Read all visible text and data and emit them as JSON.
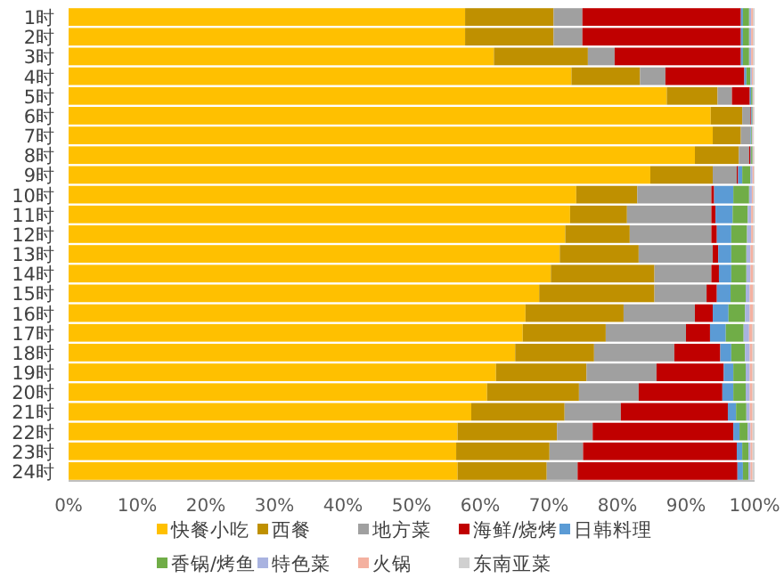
{
  "chart_data": {
    "type": "bar",
    "orientation": "horizontal",
    "stacked": true,
    "legend": "bottom",
    "grid": false,
    "categories": [
      "1时",
      "2时",
      "3时",
      "4时",
      "5时",
      "6时",
      "7时",
      "8时",
      "9时",
      "10时",
      "11时",
      "12时",
      "13时",
      "14时",
      "15时",
      "16时",
      "17时",
      "18时",
      "19时",
      "20时",
      "21时",
      "22时",
      "23时",
      "24时"
    ],
    "xlim": [
      0,
      100
    ],
    "xticks": [
      {
        "value": 0,
        "label": "0%"
      },
      {
        "value": 10,
        "label": "10%"
      },
      {
        "value": 20,
        "label": "20%"
      },
      {
        "value": 30,
        "label": "30%"
      },
      {
        "value": 40,
        "label": "40%"
      },
      {
        "value": 50,
        "label": "50%"
      },
      {
        "value": 60,
        "label": "60%"
      },
      {
        "value": 70,
        "label": "70%"
      },
      {
        "value": 80,
        "label": "80%"
      },
      {
        "value": 90,
        "label": "90%"
      },
      {
        "value": 100,
        "label": "100%"
      }
    ],
    "series": [
      {
        "name": "快餐小吃",
        "color": "#ffc000",
        "values": [
          57.8,
          57.8,
          62.0,
          73.3,
          87.2,
          93.6,
          93.9,
          91.3,
          84.8,
          74.0,
          73.1,
          72.4,
          71.6,
          70.3,
          68.6,
          66.6,
          66.2,
          65.1,
          62.3,
          61.0,
          58.7,
          56.7,
          56.5,
          56.7
        ]
      },
      {
        "name": "西餐",
        "color": "#bf9000",
        "values": [
          12.9,
          12.9,
          13.7,
          10.0,
          7.4,
          4.6,
          4.1,
          6.4,
          9.1,
          8.9,
          8.3,
          9.4,
          11.5,
          15.1,
          16.8,
          14.3,
          12.1,
          11.5,
          13.2,
          13.4,
          13.6,
          14.5,
          13.6,
          13.0
        ]
      },
      {
        "name": "地方菜",
        "color": "#a0a0a0",
        "values": [
          4.2,
          4.2,
          3.9,
          3.7,
          2.1,
          1.2,
          1.4,
          1.5,
          3.5,
          10.8,
          12.3,
          11.9,
          10.8,
          8.3,
          7.6,
          10.4,
          11.7,
          11.7,
          10.2,
          8.7,
          8.2,
          5.2,
          4.9,
          4.5
        ]
      },
      {
        "name": "海鲜/烧烤",
        "color": "#c00000",
        "values": [
          23.1,
          23.1,
          18.4,
          11.5,
          2.6,
          0.1,
          null,
          0.2,
          0.2,
          0.4,
          0.6,
          0.8,
          0.8,
          1.1,
          1.5,
          2.6,
          3.5,
          6.7,
          9.8,
          12.2,
          15.6,
          20.5,
          22.4,
          23.3
        ]
      },
      {
        "name": "日韩料理",
        "color": "#5b9bd5",
        "values": [
          0.3,
          0.3,
          0.3,
          0.3,
          0.2,
          0.1,
          0.1,
          0.1,
          0.6,
          2.8,
          2.5,
          2.1,
          1.9,
          1.8,
          2.0,
          2.3,
          2.3,
          1.6,
          1.4,
          1.6,
          1.2,
          0.9,
          0.8,
          0.8
        ]
      },
      {
        "name": "香锅/烤鱼",
        "color": "#70ad47",
        "values": [
          0.9,
          0.9,
          0.9,
          0.6,
          0.2,
          0.1,
          0.1,
          0.2,
          1.2,
          2.3,
          2.2,
          2.3,
          2.2,
          2.2,
          2.2,
          2.4,
          2.6,
          2.0,
          1.8,
          1.8,
          1.5,
          1.2,
          0.9,
          0.8
        ]
      },
      {
        "name": "特色菜",
        "color": "#a9b3e0",
        "values": [
          0.3,
          0.3,
          0.3,
          0.2,
          0.1,
          0.1,
          0.1,
          0.1,
          0.3,
          0.4,
          0.5,
          0.6,
          0.6,
          0.6,
          0.6,
          0.7,
          0.8,
          0.7,
          0.6,
          0.6,
          0.5,
          0.4,
          0.3,
          0.3
        ]
      },
      {
        "name": "火锅",
        "color": "#f4b1a0",
        "values": [
          0.3,
          0.3,
          0.3,
          0.2,
          0.1,
          0.1,
          0.1,
          0.1,
          0.2,
          0.2,
          0.3,
          0.3,
          0.4,
          0.4,
          0.5,
          0.5,
          0.5,
          0.4,
          0.4,
          0.4,
          0.4,
          0.3,
          0.3,
          0.3
        ]
      },
      {
        "name": "东南亚菜",
        "color": "#d0d0d0",
        "values": [
          0.2,
          0.2,
          0.2,
          0.2,
          0.1,
          0.1,
          0.1,
          0.1,
          0.1,
          0.2,
          0.2,
          0.2,
          0.2,
          0.2,
          0.2,
          0.2,
          0.3,
          0.3,
          0.3,
          0.3,
          0.3,
          0.3,
          0.3,
          0.3
        ]
      }
    ]
  }
}
